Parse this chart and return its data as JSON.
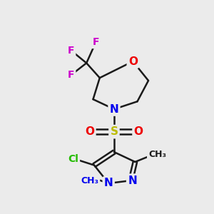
{
  "bg_color": "#ebebeb",
  "bond_color": "#1a1a1a",
  "bond_width": 1.8,
  "atom_colors": {
    "C": "#1a1a1a",
    "N": "#0000ee",
    "O": "#ee0000",
    "S": "#bbbb00",
    "F": "#cc00cc",
    "Cl": "#22bb00"
  }
}
